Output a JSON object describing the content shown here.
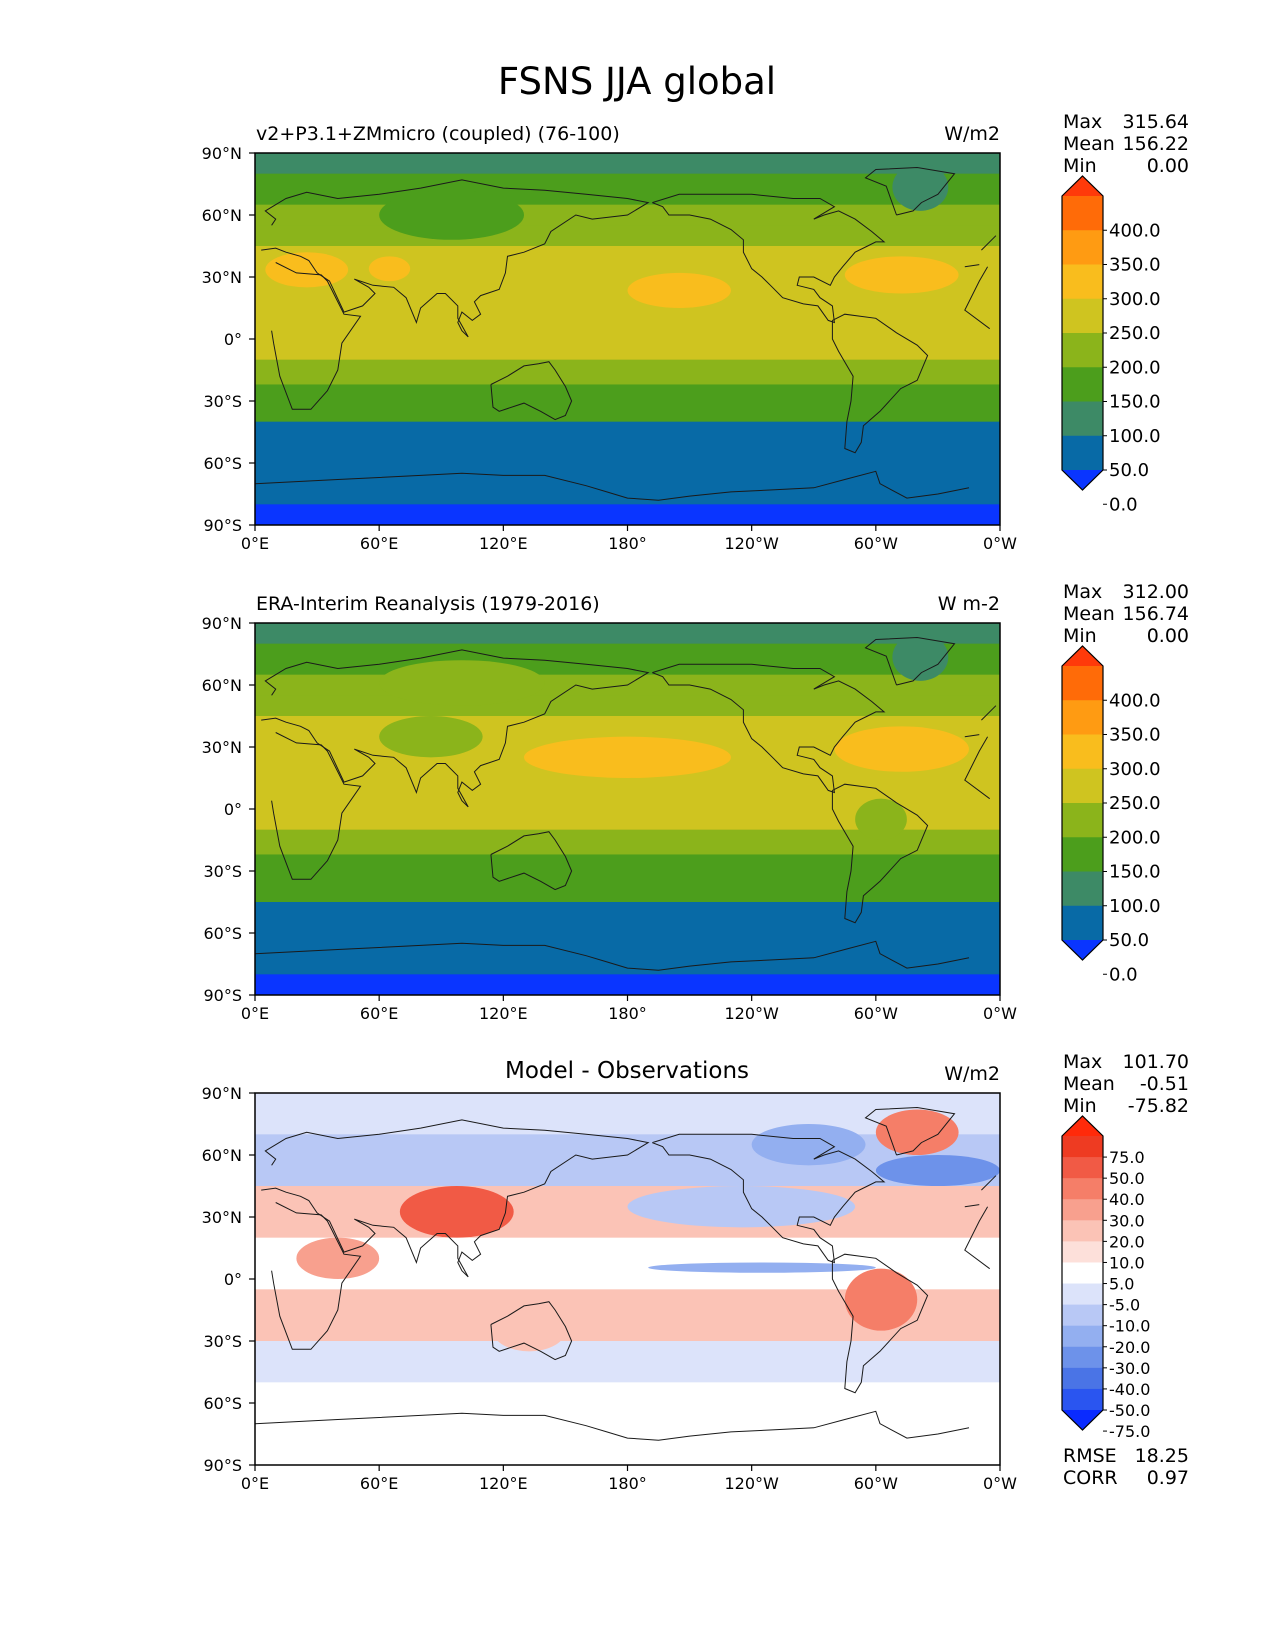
{
  "figure_title": "FSNS JJA global",
  "chart_data": [
    {
      "type": "heatmap",
      "title": "v2+P3.1+ZMmicro (coupled) (76-100)",
      "units": "W/m2",
      "projection": "PlateCarree, central longitude 180",
      "xlim": [
        0,
        360
      ],
      "ylim": [
        -90,
        90
      ],
      "stats": {
        "max_label": "Max",
        "max": "315.64",
        "mean_label": "Mean",
        "mean": "156.22",
        "min_label": "Min",
        "min": "0.00"
      },
      "colorbar": {
        "levels": [
          0,
          50,
          100,
          150,
          200,
          250,
          300,
          350,
          400
        ],
        "labels": [
          "400.0",
          "350.0",
          "300.0",
          "250.0",
          "200.0",
          "150.0",
          "100.0",
          "50.0",
          "0.0"
        ],
        "colors": [
          "#0a35ff",
          "#086aa6",
          "#3d8a66",
          "#4c9e1c",
          "#8bb41b",
          "#cfc420",
          "#f9bd1d",
          "#ff9b12",
          "#ff6b08",
          "#ff3a0a"
        ]
      },
      "field_bands": [
        {
          "lat": [
            80,
            90
          ],
          "value": 75
        },
        {
          "lat": [
            65,
            80
          ],
          "value": 125
        },
        {
          "lat": [
            55,
            65
          ],
          "value": 150
        },
        {
          "lat": [
            45,
            55
          ],
          "value": 175
        },
        {
          "lat": [
            -10,
            45
          ],
          "value": 225
        },
        {
          "lat": [
            -22,
            -10
          ],
          "value": 175
        },
        {
          "lat": [
            -32,
            -22
          ],
          "value": 125
        },
        {
          "lat": [
            -40,
            -32
          ],
          "value": 100
        },
        {
          "lat": [
            -80,
            -40
          ],
          "value": 25
        },
        {
          "lat": [
            -90,
            -80
          ],
          "value": -10
        }
      ],
      "field_patches": [
        {
          "lon": [
            180,
            230
          ],
          "lat": [
            15,
            32
          ],
          "value": 275
        },
        {
          "lon": [
            285,
            340
          ],
          "lat": [
            22,
            40
          ],
          "value": 275
        },
        {
          "lon": [
            5,
            45
          ],
          "lat": [
            25,
            42
          ],
          "value": 275
        },
        {
          "lon": [
            55,
            75
          ],
          "lat": [
            28,
            40
          ],
          "value": 275
        },
        {
          "lon": [
            60,
            130
          ],
          "lat": [
            48,
            72
          ],
          "value": 125
        },
        {
          "lon": [
            308,
            335
          ],
          "lat": [
            62,
            85
          ],
          "value": 75
        }
      ]
    },
    {
      "type": "heatmap",
      "title": "ERA-Interim Reanalysis (1979-2016)",
      "units": "W m-2",
      "projection": "PlateCarree, central longitude 180",
      "xlim": [
        0,
        360
      ],
      "ylim": [
        -90,
        90
      ],
      "stats": {
        "max_label": "Max",
        "max": "312.00",
        "mean_label": "Mean",
        "mean": "156.74",
        "min_label": "Min",
        "min": "0.00"
      },
      "colorbar": {
        "levels": [
          0,
          50,
          100,
          150,
          200,
          250,
          300,
          350,
          400
        ],
        "labels": [
          "400.0",
          "350.0",
          "300.0",
          "250.0",
          "200.0",
          "150.0",
          "100.0",
          "50.0",
          "0.0"
        ],
        "colors": [
          "#0a35ff",
          "#086aa6",
          "#3d8a66",
          "#4c9e1c",
          "#8bb41b",
          "#cfc420",
          "#f9bd1d",
          "#ff9b12",
          "#ff6b08",
          "#ff3a0a"
        ]
      },
      "field_bands": [
        {
          "lat": [
            80,
            90
          ],
          "value": 75
        },
        {
          "lat": [
            65,
            80
          ],
          "value": 125
        },
        {
          "lat": [
            55,
            65
          ],
          "value": 150
        },
        {
          "lat": [
            45,
            55
          ],
          "value": 175
        },
        {
          "lat": [
            -10,
            45
          ],
          "value": 225
        },
        {
          "lat": [
            -22,
            -10
          ],
          "value": 175
        },
        {
          "lat": [
            -32,
            -22
          ],
          "value": 125
        },
        {
          "lat": [
            -45,
            -32
          ],
          "value": 100
        },
        {
          "lat": [
            -80,
            -45
          ],
          "value": 25
        },
        {
          "lat": [
            -90,
            -80
          ],
          "value": -10
        }
      ],
      "field_patches": [
        {
          "lon": [
            130,
            230
          ],
          "lat": [
            15,
            35
          ],
          "value": 275
        },
        {
          "lon": [
            280,
            345
          ],
          "lat": [
            18,
            40
          ],
          "value": 275
        },
        {
          "lon": [
            60,
            110
          ],
          "lat": [
            25,
            45
          ],
          "value": 175
        },
        {
          "lon": [
            290,
            315
          ],
          "lat": [
            -15,
            5
          ],
          "value": 175
        },
        {
          "lon": [
            60,
            140
          ],
          "lat": [
            50,
            72
          ],
          "value": 150
        },
        {
          "lon": [
            308,
            335
          ],
          "lat": [
            62,
            85
          ],
          "value": 75
        }
      ]
    },
    {
      "type": "heatmap",
      "title": "Model - Observations",
      "units": "W/m2",
      "projection": "PlateCarree, central longitude 180",
      "xlim": [
        0,
        360
      ],
      "ylim": [
        -90,
        90
      ],
      "stats": {
        "max_label": "Max",
        "max": "101.70",
        "mean_label": "Mean",
        "mean": "-0.51",
        "min_label": "Min",
        "min": "-75.82"
      },
      "metrics": {
        "rmse_label": "RMSE",
        "rmse": "18.25",
        "corr_label": "CORR",
        "corr": "0.97"
      },
      "colorbar": {
        "levels": [
          -75,
          -50,
          -40,
          -30,
          -20,
          -10,
          -5,
          5,
          10,
          20,
          30,
          40,
          50,
          75
        ],
        "labels": [
          "75.0",
          "50.0",
          "40.0",
          "30.0",
          "20.0",
          "10.0",
          "5.0",
          "-5.0",
          "-10.0",
          "-20.0",
          "-30.0",
          "-40.0",
          "-50.0",
          "-75.0"
        ],
        "colors": [
          "#0a2bff",
          "#2a55f0",
          "#4a74e6",
          "#6d92ea",
          "#93aff0",
          "#b8c8f5",
          "#dce3fa",
          "#ffffff",
          "#fde0da",
          "#fbc3b6",
          "#f8a08e",
          "#f57e68",
          "#f15a45",
          "#ee3b22",
          "#ff2a0a"
        ]
      },
      "field_bands": [
        {
          "lat": [
            70,
            90
          ],
          "value": -7
        },
        {
          "lat": [
            45,
            70
          ],
          "value": -15
        },
        {
          "lat": [
            20,
            45
          ],
          "value": 12
        },
        {
          "lat": [
            -5,
            20
          ],
          "value": 0
        },
        {
          "lat": [
            -30,
            -5
          ],
          "value": 12
        },
        {
          "lat": [
            -50,
            -30
          ],
          "value": -7
        },
        {
          "lat": [
            -90,
            -50
          ],
          "value": 0
        }
      ],
      "field_patches": [
        {
          "lon": [
            70,
            125
          ],
          "lat": [
            20,
            45
          ],
          "value": 45
        },
        {
          "lon": [
            20,
            60
          ],
          "lat": [
            0,
            20
          ],
          "value": 25
        },
        {
          "lon": [
            285,
            320
          ],
          "lat": [
            -25,
            5
          ],
          "value": 35
        },
        {
          "lon": [
            300,
            340
          ],
          "lat": [
            60,
            82
          ],
          "value": 35
        },
        {
          "lon": [
            180,
            290
          ],
          "lat": [
            25,
            45
          ],
          "value": -15
        },
        {
          "lon": [
            190,
            300
          ],
          "lat": [
            3,
            8
          ],
          "value": -25
        },
        {
          "lon": [
            300,
            360
          ],
          "lat": [
            45,
            60
          ],
          "value": -35
        },
        {
          "lon": [
            240,
            295
          ],
          "lat": [
            55,
            75
          ],
          "value": -25
        },
        {
          "lon": [
            115,
            150
          ],
          "lat": [
            -35,
            -15
          ],
          "value": 15
        }
      ]
    }
  ],
  "axes": {
    "x_tick_labels": [
      "0°E",
      "60°E",
      "120°E",
      "180°",
      "120°W",
      "60°W",
      "0°W"
    ],
    "y_tick_labels": [
      "90°N",
      "60°N",
      "30°N",
      "0°",
      "30°S",
      "60°S",
      "90°S"
    ]
  }
}
